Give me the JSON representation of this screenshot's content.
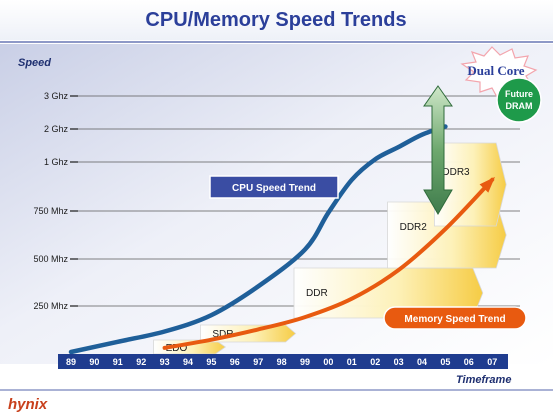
{
  "chart_data": {
    "type": "line",
    "title": "CPU/Memory Speed Trends",
    "ylabel": "Speed",
    "xlabel": "Timeframe",
    "y_ticks": [
      "250 Mhz",
      "500 Mhz",
      "750 Mhz",
      "1 Ghz",
      "2 Ghz",
      "3 Ghz"
    ],
    "categories": [
      "89",
      "90",
      "91",
      "92",
      "93",
      "94",
      "95",
      "96",
      "97",
      "98",
      "99",
      "00",
      "01",
      "02",
      "03",
      "04",
      "05",
      "06",
      "07"
    ],
    "series": [
      {
        "name": "CPU Speed Trend",
        "color": "#1f5f99",
        "x": [
          "89",
          "91",
          "93",
          "95",
          "97",
          "99",
          "00",
          "01",
          "02",
          "03",
          "04",
          "05"
        ],
        "y": [
          0,
          0.25,
          0.5,
          0.9,
          1.6,
          2.5,
          3.4,
          4.2,
          4.7,
          5.0,
          5.3,
          5.5
        ]
      },
      {
        "name": "Memory Speed Trend",
        "color": "#e85a10",
        "x": [
          "93",
          "95",
          "97",
          "99",
          "01",
          "03",
          "05",
          "07"
        ],
        "y": [
          0.1,
          0.3,
          0.55,
          0.85,
          1.3,
          2.0,
          3.0,
          4.2
        ]
      }
    ],
    "memory_types": [
      {
        "label": "EDO",
        "start": "93",
        "end": "95"
      },
      {
        "label": "SDR",
        "start": "95",
        "end": "98"
      },
      {
        "label": "DDR",
        "start": "99",
        "end": "06"
      },
      {
        "label": "DDR2",
        "start": "03",
        "end": "07"
      },
      {
        "label": "DDR3",
        "start": "05",
        "end": "07"
      }
    ],
    "annotations": {
      "dual_core": "Dual Core",
      "future_dram": [
        "Future",
        "DRAM"
      ]
    }
  },
  "logo": "hynix",
  "colors": {
    "title": "#2b3f9a",
    "axis_bar": "#1f3c8f",
    "cpu": "#1f5f99",
    "memory": "#e85a10",
    "cpu_tag": "#3a4da3",
    "memory_tag": "#e85a10",
    "future_dram": "#1e9a4a",
    "arrow": "#3f8c52"
  }
}
